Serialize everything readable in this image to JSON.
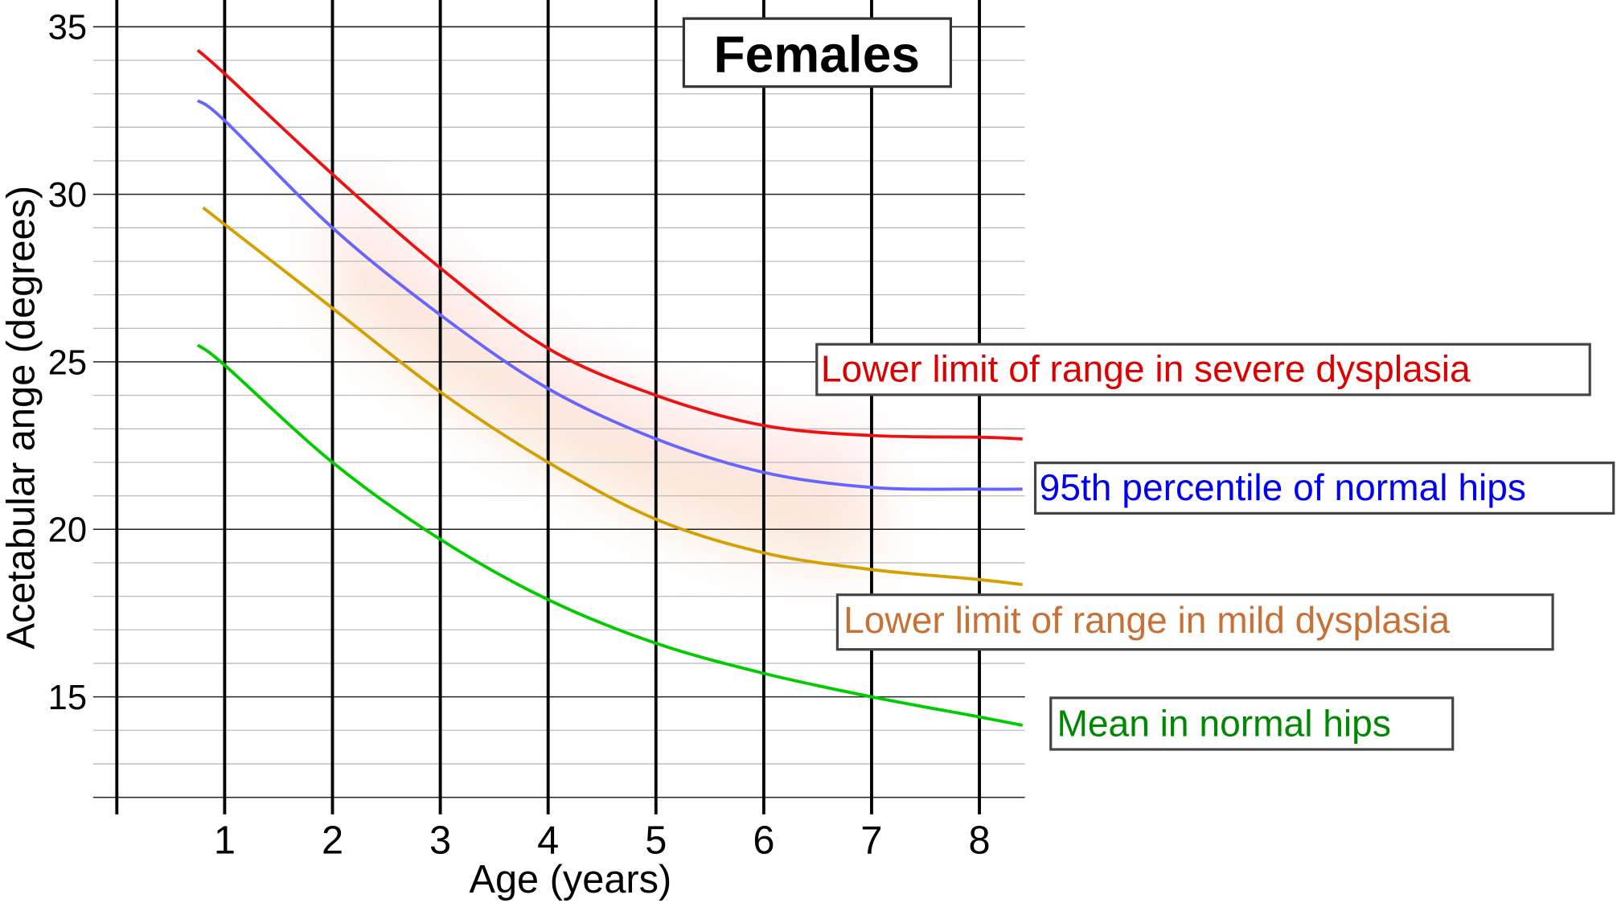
{
  "chart_data": {
    "type": "line",
    "title": "Females",
    "xlabel": "Age (years)",
    "ylabel": "Acetabular ange (degrees)",
    "xlim": [
      0,
      8.4
    ],
    "ylim": [
      12,
      35.7
    ],
    "xticks": [
      1,
      2,
      3,
      4,
      5,
      6,
      7,
      8
    ],
    "xtick_labels": [
      "1",
      "2",
      "3",
      "4",
      "5",
      "6",
      "7",
      "8"
    ],
    "yticks": [
      15,
      20,
      25,
      30,
      35
    ],
    "ytick_labels": [
      "15",
      "20",
      "25",
      "30",
      "35"
    ],
    "grid": "major every 5 degrees, minor every 1 degree, vertical every year",
    "series": [
      {
        "name": "Lower limit of range in severe dysplasia",
        "line_color": "#ee1111",
        "label_color": "#dd0000",
        "x": [
          0.75,
          1,
          2,
          3,
          4,
          5,
          6,
          7,
          8,
          8.4
        ],
        "y": [
          34.3,
          33.6,
          30.6,
          27.8,
          25.4,
          24.0,
          23.1,
          22.8,
          22.75,
          22.7
        ]
      },
      {
        "name": "95th percentile of normal hips",
        "line_color": "#6666ff",
        "label_color": "#0000ee",
        "x": [
          0.75,
          1,
          2,
          3,
          4,
          5,
          6,
          7,
          8,
          8.4
        ],
        "y": [
          32.8,
          32.2,
          29.0,
          26.4,
          24.2,
          22.7,
          21.7,
          21.25,
          21.2,
          21.2
        ]
      },
      {
        "name": "Lower limit of range in mild dysplasia",
        "line_color": "#d4a000",
        "label_color": "#c87137",
        "x": [
          0.8,
          1,
          2,
          3,
          4,
          5,
          6,
          7,
          8,
          8.4
        ],
        "y": [
          29.6,
          29.1,
          26.6,
          24.1,
          22.0,
          20.3,
          19.3,
          18.8,
          18.5,
          18.35
        ]
      },
      {
        "name": "Mean in normal hips",
        "line_color": "#00cc00",
        "label_color": "#008800",
        "x": [
          0.75,
          1,
          2,
          3,
          4,
          5,
          6,
          7,
          8,
          8.4
        ],
        "y": [
          25.5,
          24.9,
          22.0,
          19.7,
          17.9,
          16.6,
          15.7,
          15.0,
          14.4,
          14.15
        ]
      }
    ]
  }
}
